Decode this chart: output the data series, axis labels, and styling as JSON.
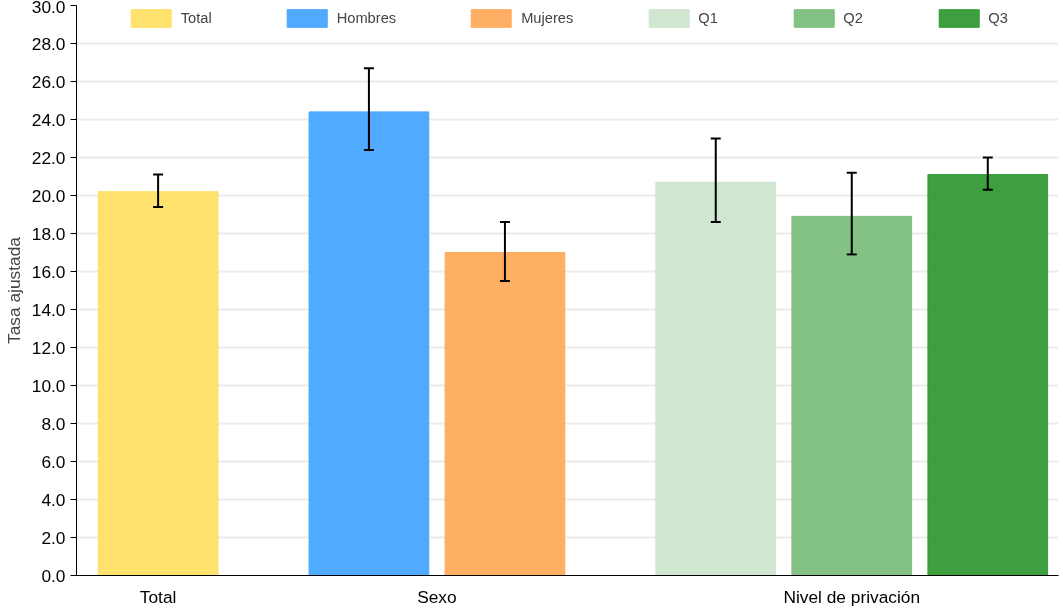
{
  "chart_data": {
    "type": "bar",
    "ylabel": "Tasa ajustada",
    "categories": [
      "Total",
      "Sexo",
      "Nivel de privación"
    ],
    "series": [
      {
        "name": "Total",
        "color": "#ffe066",
        "values": [
          20.2,
          null,
          null
        ],
        "errors": [
          [
            19.4,
            21.1
          ],
          null,
          null
        ]
      },
      {
        "name": "Hombres",
        "color": "#47a5ff",
        "values": [
          null,
          24.4,
          null
        ],
        "errors": [
          null,
          [
            22.4,
            26.7
          ],
          null
        ]
      },
      {
        "name": "Mujeres",
        "color": "#ffab5c",
        "values": [
          null,
          17.0,
          null
        ],
        "errors": [
          null,
          [
            15.5,
            18.6
          ],
          null
        ]
      },
      {
        "name": "Q1",
        "color": "#cee5cf",
        "values": [
          null,
          null,
          20.7
        ],
        "errors": [
          null,
          null,
          [
            18.6,
            23.0
          ]
        ]
      },
      {
        "name": "Q2",
        "color": "#7dbe7d",
        "values": [
          null,
          null,
          18.9
        ],
        "errors": [
          null,
          null,
          [
            16.9,
            21.2
          ]
        ]
      },
      {
        "name": "Q3",
        "color": "#349a34",
        "values": [
          null,
          null,
          21.1
        ],
        "errors": [
          null,
          null,
          [
            20.3,
            22.0
          ]
        ]
      }
    ],
    "ylim": [
      0,
      30
    ],
    "yticks": [
      {
        "value": 0,
        "label": "0.0"
      },
      {
        "value": 2,
        "label": "2.0"
      },
      {
        "value": 4,
        "label": "4.0"
      },
      {
        "value": 6,
        "label": "6.0"
      },
      {
        "value": 8,
        "label": "8.0"
      },
      {
        "value": 10,
        "label": "10.0"
      },
      {
        "value": 12,
        "label": "12.0"
      },
      {
        "value": 14,
        "label": "14.0"
      },
      {
        "value": 16,
        "label": "16.0"
      },
      {
        "value": 18,
        "label": "18.0"
      },
      {
        "value": 20,
        "label": "20.0"
      },
      {
        "value": 22,
        "label": "22.0"
      },
      {
        "value": 24,
        "label": "24.0"
      },
      {
        "value": 26,
        "label": "26.0"
      },
      {
        "value": 28,
        "label": "28.0"
      },
      {
        "value": 30,
        "label": "30.0"
      }
    ],
    "grid": "y",
    "legend": "top"
  }
}
